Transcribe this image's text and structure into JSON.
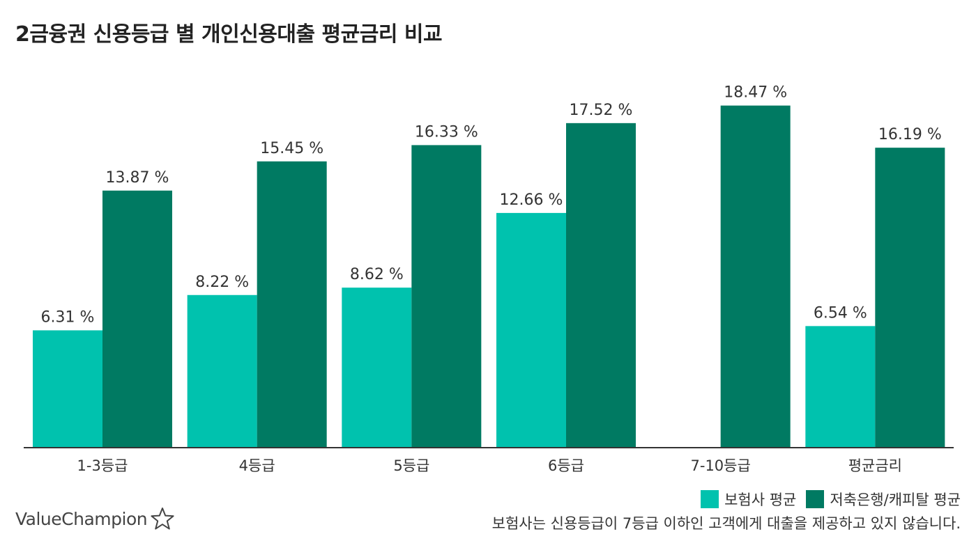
{
  "title": "2금융권 신용등급 별 개인신용대출 평균금리 비교",
  "logo": {
    "text": "ValueChampion",
    "icon": "star-outline-icon"
  },
  "footnote": "보험사는 신용등급이 7등급 이하인 고객에게 대출을 제공하고 있지 않습니다.",
  "colors": {
    "insurance": "#00c2ae",
    "savings_bank": "#007a62",
    "axis": "#333333"
  },
  "chart_data": {
    "type": "bar",
    "title": "2금융권 신용등급 별 개인신용대출 평균금리 비교",
    "xlabel": "",
    "ylabel": "",
    "ylim": [
      0,
      20
    ],
    "grid": false,
    "legend_position": "bottom-right",
    "value_suffix": " %",
    "categories": [
      "1-3등급",
      "4등급",
      "5등급",
      "6등급",
      "7-10등급",
      "평균금리"
    ],
    "series": [
      {
        "name": "보험사 평균",
        "color": "#00c2ae",
        "values": [
          6.31,
          8.22,
          8.62,
          12.66,
          null,
          6.54
        ],
        "labels": [
          "6.31 %",
          "8.22 %",
          "8.62 %",
          "12.66 %",
          null,
          "6.54 %"
        ]
      },
      {
        "name": "저축은행/캐피탈 평균",
        "color": "#007a62",
        "values": [
          13.87,
          15.45,
          16.33,
          17.52,
          18.47,
          16.19
        ],
        "labels": [
          "13.87 %",
          "15.45 %",
          "16.33 %",
          "17.52 %",
          "18.47 %",
          "16.19 %"
        ]
      }
    ]
  }
}
